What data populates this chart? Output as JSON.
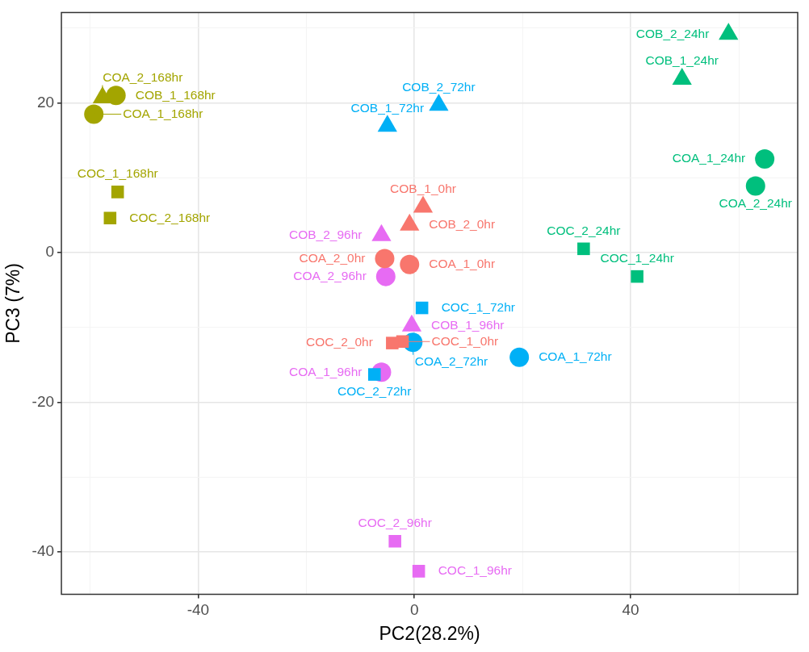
{
  "chart_data": {
    "type": "scatter",
    "xlabel": "PC2(28.2%)",
    "ylabel": "PC3 (7%)",
    "xlim": [
      -65.3,
      70.9
    ],
    "ylim": [
      -45.7,
      32.1
    ],
    "xticks": [
      {
        "value": -60,
        "label": null
      },
      -40,
      {
        "value": -20,
        "label": null
      },
      0,
      {
        "value": 20,
        "label": null
      },
      40,
      {
        "value": 60,
        "label": null
      }
    ],
    "yticks": [
      {
        "value": -40,
        "label": "-40"
      },
      {
        "value": -30,
        "label": null
      },
      {
        "value": -20,
        "label": "-20"
      },
      {
        "value": -10,
        "label": null
      },
      0,
      {
        "value": 10,
        "label": null
      },
      20,
      {
        "value": 30,
        "label": null
      }
    ],
    "grid": true,
    "legend": false,
    "series": [
      {
        "marker": "circle",
        "color": "#f8766d",
        "x": [
          -0.9,
          -5.5
        ],
        "values": [
          -1.6,
          -0.8
        ]
      },
      {
        "marker": "triangle",
        "color": "#f8766d",
        "x": [
          1.6,
          -0.9
        ],
        "values": [
          6.1,
          3.7
        ]
      },
      {
        "marker": "square",
        "color": "#f8766d",
        "x": [
          -2.2,
          -4.1
        ],
        "values": [
          -11.9,
          -12.1
        ]
      },
      {
        "marker": "circle",
        "color": "#00bf7d",
        "x": [
          64.8,
          63.1
        ],
        "values": [
          12.5,
          8.9
        ]
      },
      {
        "marker": "triangle",
        "color": "#00bf7d",
        "x": [
          49.5,
          58.1
        ],
        "values": [
          23.2,
          29.2
        ]
      },
      {
        "marker": "square",
        "color": "#00bf7d",
        "x": [
          41.2,
          31.3
        ],
        "values": [
          -3.2,
          0.5
        ]
      },
      {
        "marker": "circle",
        "color": "#00b0f6",
        "x": [
          19.4,
          -0.3
        ],
        "values": [
          -14.0,
          -12.0
        ]
      },
      {
        "marker": "triangle",
        "color": "#00b0f6",
        "x": [
          -5.0,
          4.5
        ],
        "values": [
          16.9,
          19.7
        ]
      },
      {
        "marker": "square",
        "color": "#00b0f6",
        "x": [
          1.4,
          -7.4
        ],
        "values": [
          -7.4,
          -16.3
        ]
      },
      {
        "marker": "circle",
        "color": "#e76bf3",
        "x": [
          -6.1,
          -5.3
        ],
        "values": [
          -16.0,
          -3.2
        ]
      },
      {
        "marker": "triangle",
        "color": "#e76bf3",
        "x": [
          -0.5,
          -6.1
        ],
        "values": [
          -9.8,
          2.3
        ]
      },
      {
        "marker": "square",
        "color": "#e76bf3",
        "x": [
          0.8,
          -3.6
        ],
        "values": [
          -42.6,
          -38.6
        ]
      },
      {
        "marker": "circle",
        "color": "#a3a500",
        "x": [
          -59.3,
          -55.2
        ],
        "values": [
          18.5,
          21.0
        ]
      },
      {
        "marker": "triangle",
        "color": "#a3a500",
        "x": [
          -57.7
        ],
        "values": [
          20.7
        ]
      },
      {
        "marker": "square",
        "color": "#a3a500",
        "x": [
          -54.9,
          -56.3
        ],
        "values": [
          8.1,
          4.6
        ]
      }
    ],
    "annotations": [
      {
        "text": "COA_1_0hr",
        "x": -0.9,
        "y": -1.6
      },
      {
        "text": "COA_2_0hr",
        "x": -5.5,
        "y": -0.8
      },
      {
        "text": "COB_1_0hr",
        "x": 1.6,
        "y": 6.1
      },
      {
        "text": "COB_2_0hr",
        "x": -0.9,
        "y": 3.7
      },
      {
        "text": "COC_1_0hr",
        "x": -2.2,
        "y": -11.9
      },
      {
        "text": "COC_2_0hr",
        "x": -4.1,
        "y": -12.1
      },
      {
        "text": "COA_1_24hr",
        "x": 64.8,
        "y": 12.5
      },
      {
        "text": "COA_2_24hr",
        "x": 63.1,
        "y": 8.9
      },
      {
        "text": "COB_1_24hr",
        "x": 49.5,
        "y": 23.2
      },
      {
        "text": "COB_2_24hr",
        "x": 58.1,
        "y": 29.2
      },
      {
        "text": "COC_1_24hr",
        "x": 41.2,
        "y": -3.2
      },
      {
        "text": "COC_2_24hr",
        "x": 31.3,
        "y": 0.5
      },
      {
        "text": "COA_1_72hr",
        "x": 19.4,
        "y": -14.0
      },
      {
        "text": "COA_2_72hr",
        "x": -0.3,
        "y": -12.0
      },
      {
        "text": "COB_1_72hr",
        "x": -5.0,
        "y": 16.9
      },
      {
        "text": "COB_2_72hr",
        "x": 4.5,
        "y": 19.7
      },
      {
        "text": "COC_1_72hr",
        "x": 1.4,
        "y": -7.4
      },
      {
        "text": "COC_2_72hr",
        "x": -7.4,
        "y": -16.3
      },
      {
        "text": "COA_1_96hr",
        "x": -6.1,
        "y": -16.0
      },
      {
        "text": "COA_2_96hr",
        "x": -5.3,
        "y": -3.2
      },
      {
        "text": "COB_1_96hr",
        "x": -0.5,
        "y": -9.8
      },
      {
        "text": "COB_2_96hr",
        "x": -6.1,
        "y": 2.3
      },
      {
        "text": "COC_1_96hr",
        "x": 0.8,
        "y": -42.6
      },
      {
        "text": "COC_2_96hr",
        "x": -3.6,
        "y": -38.6
      },
      {
        "text": "COA_1_168hr",
        "x": -59.3,
        "y": 18.5
      },
      {
        "text": "COA_2_168hr",
        "x": -57.7,
        "y": 20.7
      },
      {
        "text": "COB_1_168hr",
        "x": -55.2,
        "y": 21.0
      },
      {
        "text": "COC_1_168hr",
        "x": -54.9,
        "y": 8.1
      },
      {
        "text": "COC_2_168hr",
        "x": -56.3,
        "y": 4.6
      }
    ]
  }
}
